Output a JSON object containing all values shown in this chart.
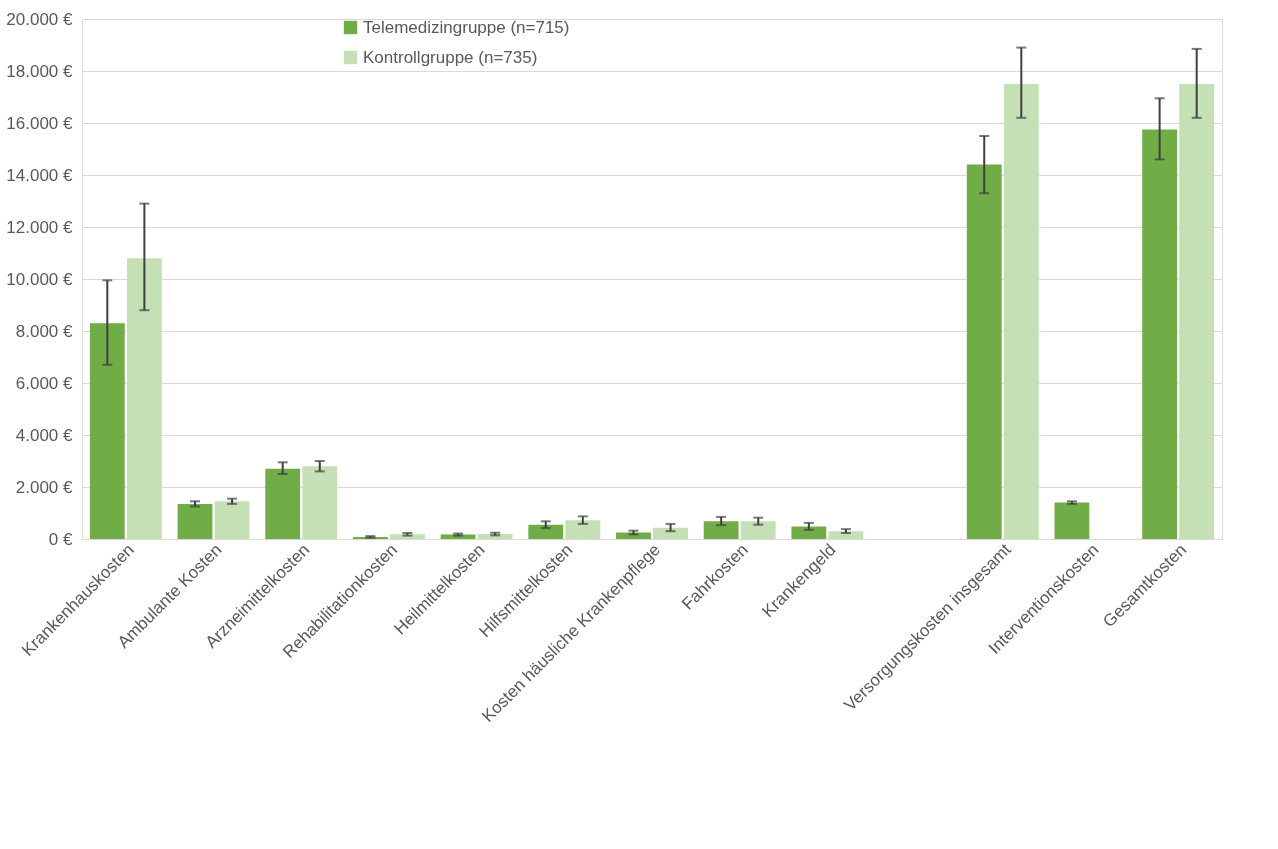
{
  "chart_data": {
    "type": "bar",
    "categories": [
      "Krankenhauskosten",
      "Ambulante Kosten",
      "Arzneimittelkosten",
      "Rehabilitationkosten",
      "Heilmittelkosten",
      "Hilfsmittelkosten",
      "Kosten häusliche Krankenpflege",
      "Fahrkosten",
      "Krankengeld",
      null,
      "Versorgungskosten insgesamt",
      "Interventionskosten",
      "Gesamtkosten"
    ],
    "series": [
      {
        "name": "Telemedizingruppe (n=715)",
        "color": "#70ad47",
        "values": [
          8300,
          1350,
          2700,
          80,
          170,
          550,
          250,
          680,
          480,
          null,
          14400,
          1400,
          15750
        ],
        "errors": [
          [
            6700,
            9950
          ],
          [
            1250,
            1450
          ],
          [
            2500,
            2950
          ],
          [
            50,
            110
          ],
          [
            130,
            210
          ],
          [
            420,
            680
          ],
          [
            180,
            320
          ],
          [
            530,
            850
          ],
          [
            350,
            620
          ],
          null,
          [
            13300,
            15500
          ],
          [
            1350,
            1450
          ],
          [
            14600,
            16950
          ]
        ]
      },
      {
        "name": "Kontrollgruppe (n=735)",
        "color": "#c5e0b4",
        "values": [
          10800,
          1450,
          2800,
          180,
          190,
          720,
          430,
          680,
          300,
          null,
          17500,
          null,
          17500
        ],
        "errors": [
          [
            8800,
            12900
          ],
          [
            1350,
            1550
          ],
          [
            2600,
            3000
          ],
          [
            130,
            230
          ],
          [
            140,
            240
          ],
          [
            580,
            870
          ],
          [
            300,
            580
          ],
          [
            550,
            820
          ],
          [
            230,
            380
          ],
          null,
          [
            16200,
            18900
          ],
          null,
          [
            16200,
            18850
          ]
        ]
      }
    ],
    "ylim": [
      0,
      20000
    ],
    "yticks": [
      {
        "value": 0,
        "label": "0 €"
      },
      {
        "value": 2000,
        "label": "2.000 €"
      },
      {
        "value": 4000,
        "label": "4.000 €"
      },
      {
        "value": 6000,
        "label": "6.000 €"
      },
      {
        "value": 8000,
        "label": "8.000 €"
      },
      {
        "value": 10000,
        "label": "10.000 €"
      },
      {
        "value": 12000,
        "label": "12.000 €"
      },
      {
        "value": 14000,
        "label": "14.000 €"
      },
      {
        "value": 16000,
        "label": "16.000 €"
      },
      {
        "value": 18000,
        "label": "18.000 €"
      },
      {
        "value": 20000,
        "label": "20.000 €"
      }
    ],
    "grid": "y",
    "legend": "top"
  }
}
